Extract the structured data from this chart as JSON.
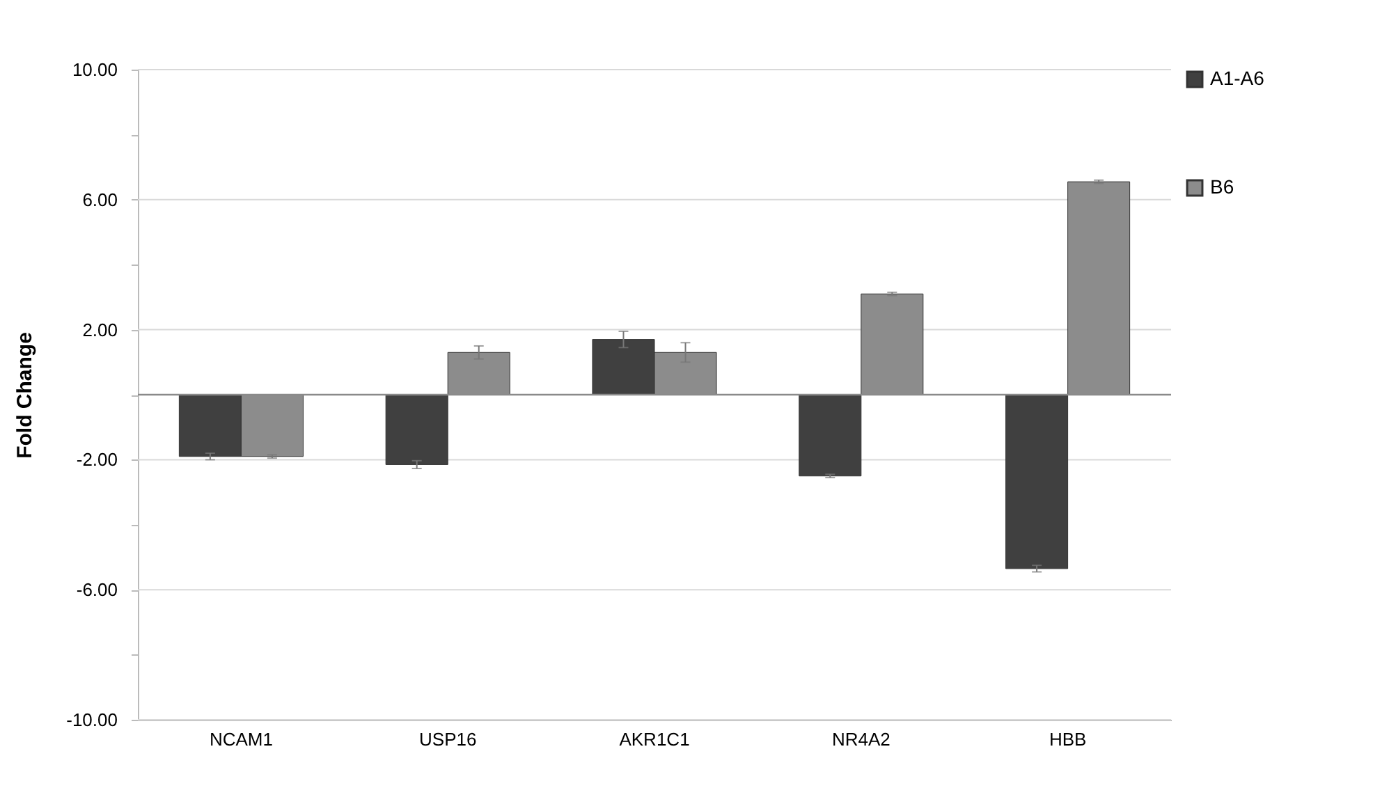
{
  "chart_data": {
    "type": "bar",
    "ylabel": "Fold Change",
    "categories": [
      "NCAM1",
      "USP16",
      "AKR1C1",
      "NR4A2",
      "HBB"
    ],
    "series": [
      {
        "name": "A1-A6",
        "color": "#404040",
        "values": [
          -1.9,
          -2.15,
          1.7,
          -2.5,
          -5.35
        ],
        "errors": [
          0.1,
          0.12,
          0.25,
          0.05,
          0.1
        ]
      },
      {
        "name": "B6",
        "color": "#8c8c8c",
        "values": [
          -1.9,
          1.3,
          1.3,
          3.1,
          6.55
        ],
        "errors": [
          0.05,
          0.2,
          0.3,
          0.05,
          0.05
        ]
      }
    ],
    "ylim": [
      -10,
      10
    ],
    "yticks": [
      {
        "value": -10,
        "label": "-10.00"
      },
      {
        "value": -8,
        "label": null
      },
      {
        "value": -6,
        "label": "-6.00"
      },
      {
        "value": -4,
        "label": null
      },
      {
        "value": -2,
        "label": "-2.00"
      },
      {
        "value": 0,
        "label": null
      },
      {
        "value": 2,
        "label": "2.00"
      },
      {
        "value": 4,
        "label": null
      },
      {
        "value": 6,
        "label": "6.00"
      },
      {
        "value": 8,
        "label": null
      },
      {
        "value": 10,
        "label": "10.00"
      }
    ],
    "grid": "y",
    "ref_lines": [
      {
        "axis": "y",
        "value": 0,
        "color": "#8a8a8a"
      }
    ],
    "legend": "right"
  }
}
